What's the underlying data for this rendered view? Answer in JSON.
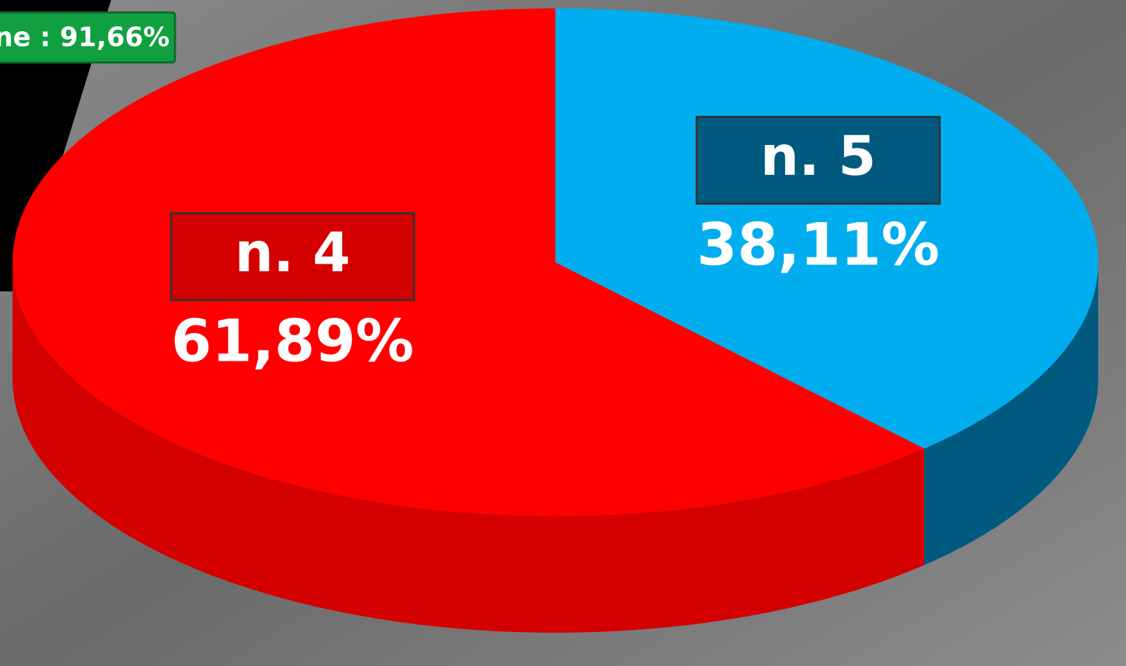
{
  "chart_data": {
    "type": "pie3d",
    "annotation": "ne : 91,66%",
    "categories": [
      "n. 4",
      "n. 5"
    ],
    "values": [
      61.89,
      38.11
    ],
    "value_labels": [
      "61,89%",
      "38,11%"
    ],
    "colors": [
      "#ff0000",
      "#00aeef"
    ],
    "side_colors": [
      "#d40000",
      "#005a80"
    ]
  }
}
